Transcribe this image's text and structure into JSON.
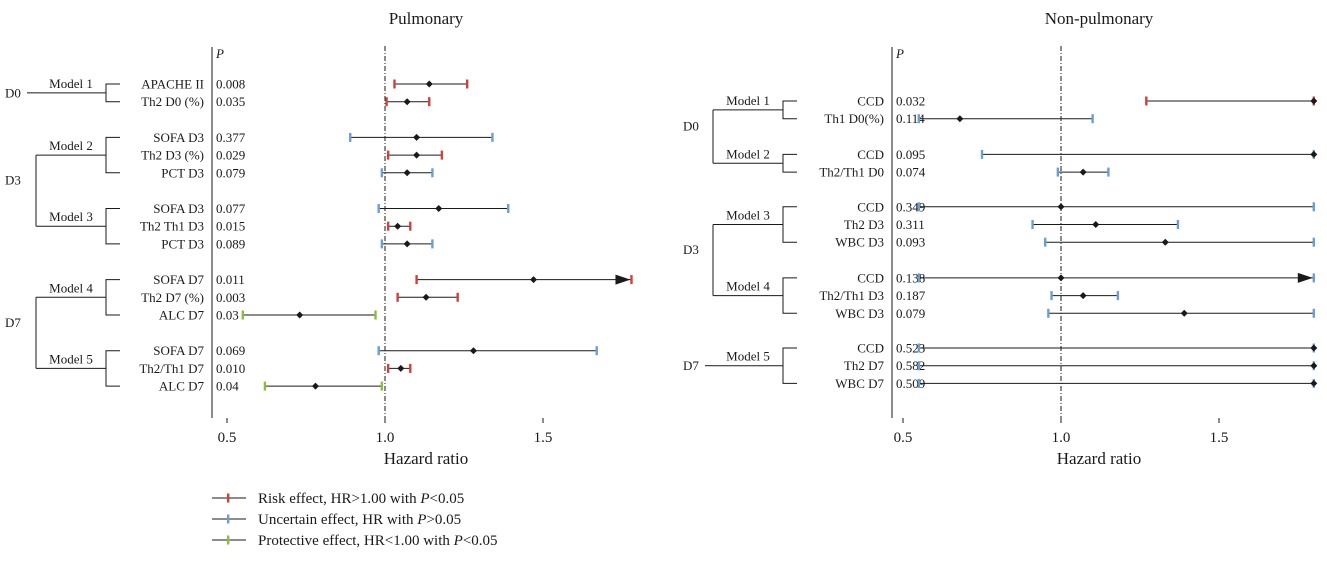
{
  "colors": {
    "risk": "#d0413a",
    "uncertain": "#6b9fd4",
    "protective": "#86c13a",
    "line": "#1a1a1a"
  },
  "legend": [
    {
      "effect": "risk",
      "prefix": "Risk effect, HR>1.00 with ",
      "italic": "P",
      "suffix": "<0.05"
    },
    {
      "effect": "uncertain",
      "prefix": "Uncertain effect, HR with ",
      "italic": "P",
      "suffix": ">0.05"
    },
    {
      "effect": "protective",
      "prefix": "Protective effect, HR<1.00 with ",
      "italic": "P",
      "suffix": "<0.05"
    }
  ],
  "chart_data": [
    {
      "type": "forest",
      "title": "Pulmonary",
      "xlabel": "Hazard ratio",
      "p_header": "P",
      "xlim": [
        0.5,
        1.8
      ],
      "xticks": [
        0.5,
        1.0,
        1.5
      ],
      "xtick_labels": [
        "0.5",
        "1.0",
        "1.5"
      ],
      "reference": 1.0,
      "groups": [
        {
          "day": "D0",
          "models": [
            {
              "model": "Model 1",
              "rows": [
                {
                  "label": "APACHE II",
                  "p": "0.008",
                  "hr": 1.14,
                  "lo": 1.03,
                  "hi": 1.26,
                  "effect": "risk"
                },
                {
                  "label": "Th2 D0 (%)",
                  "p": "0.035",
                  "hr": 1.07,
                  "lo": 1.005,
                  "hi": 1.14,
                  "effect": "risk"
                }
              ]
            }
          ]
        },
        {
          "day": "D3",
          "models": [
            {
              "model": "Model 2",
              "rows": [
                {
                  "label": "SOFA D3",
                  "p": "0.377",
                  "hr": 1.1,
                  "lo": 0.89,
                  "hi": 1.34,
                  "effect": "uncertain"
                },
                {
                  "label": "Th2 D3 (%)",
                  "p": "0.029",
                  "hr": 1.1,
                  "lo": 1.01,
                  "hi": 1.18,
                  "effect": "risk"
                },
                {
                  "label": "PCT D3",
                  "p": "0.079",
                  "hr": 1.07,
                  "lo": 0.99,
                  "hi": 1.15,
                  "effect": "uncertain"
                }
              ]
            },
            {
              "model": "Model 3",
              "rows": [
                {
                  "label": "SOFA D3",
                  "p": "0.077",
                  "hr": 1.17,
                  "lo": 0.98,
                  "hi": 1.39,
                  "effect": "uncertain"
                },
                {
                  "label": "Th2 Th1 D3",
                  "p": "0.015",
                  "hr": 1.04,
                  "lo": 1.01,
                  "hi": 1.08,
                  "effect": "risk"
                },
                {
                  "label": "PCT D3",
                  "p": "0.089",
                  "hr": 1.07,
                  "lo": 0.99,
                  "hi": 1.15,
                  "effect": "uncertain"
                }
              ]
            }
          ]
        },
        {
          "day": "D7",
          "models": [
            {
              "model": "Model 4",
              "rows": [
                {
                  "label": "SOFA D7",
                  "p": "0.011",
                  "hr": 1.47,
                  "lo": 1.1,
                  "hi": 1.78,
                  "effect": "risk",
                  "arrow": true
                },
                {
                  "label": "Th2 D7 (%)",
                  "p": "0.003",
                  "hr": 1.13,
                  "lo": 1.04,
                  "hi": 1.23,
                  "effect": "risk"
                },
                {
                  "label": "ALC D7",
                  "p": "0.03",
                  "hr": 0.73,
                  "lo": 0.55,
                  "hi": 0.97,
                  "effect": "protective"
                }
              ]
            },
            {
              "model": "Model 5",
              "rows": [
                {
                  "label": "SOFA D7",
                  "p": "0.069",
                  "hr": 1.28,
                  "lo": 0.98,
                  "hi": 1.67,
                  "effect": "uncertain"
                },
                {
                  "label": "Th2/Th1 D7",
                  "p": "0.010",
                  "hr": 1.05,
                  "lo": 1.01,
                  "hi": 1.08,
                  "effect": "risk"
                },
                {
                  "label": "ALC D7",
                  "p": "0.04",
                  "hr": 0.78,
                  "lo": 0.62,
                  "hi": 0.99,
                  "effect": "protective"
                }
              ]
            }
          ]
        }
      ]
    },
    {
      "type": "forest",
      "title": "Non-pulmonary",
      "xlabel": "Hazard ratio",
      "p_header": "P",
      "xlim": [
        0.5,
        1.8
      ],
      "xticks": [
        0.5,
        1.0,
        1.5
      ],
      "xtick_labels": [
        "0.5",
        "1.0",
        "1.5"
      ],
      "reference": 1.0,
      "groups": [
        {
          "day": "D0",
          "models": [
            {
              "model": "Model 1",
              "rows": [
                {
                  "label": "CCD",
                  "p": "0.032",
                  "hr": 1.8,
                  "lo": 1.27,
                  "hi": 1.8,
                  "effect": "risk"
                },
                {
                  "label": "Th1 D0(%)",
                  "p": "0.114",
                  "hr": 0.68,
                  "lo": 0.55,
                  "hi": 1.1,
                  "effect": "uncertain"
                }
              ]
            },
            {
              "model": "Model 2",
              "rows": [
                {
                  "label": "CCD",
                  "p": "0.095",
                  "hr": 1.8,
                  "lo": 0.75,
                  "hi": 1.8,
                  "effect": "uncertain"
                },
                {
                  "label": "Th2/Th1 D0",
                  "p": "0.074",
                  "hr": 1.07,
                  "lo": 0.99,
                  "hi": 1.15,
                  "effect": "uncertain"
                }
              ]
            }
          ]
        },
        {
          "day": "D3",
          "models": [
            {
              "model": "Model 3",
              "rows": [
                {
                  "label": "CCD",
                  "p": "0.349",
                  "hr": 1.0,
                  "lo": 0.55,
                  "hi": 1.8,
                  "effect": "uncertain"
                },
                {
                  "label": "Th2 D3",
                  "p": "0.311",
                  "hr": 1.11,
                  "lo": 0.91,
                  "hi": 1.37,
                  "effect": "uncertain"
                },
                {
                  "label": "WBC D3",
                  "p": "0.093",
                  "hr": 1.33,
                  "lo": 0.95,
                  "hi": 1.8,
                  "effect": "uncertain"
                }
              ]
            },
            {
              "model": "Model 4",
              "rows": [
                {
                  "label": "CCD",
                  "p": "0.138",
                  "hr": 1.0,
                  "lo": 0.55,
                  "hi": 1.8,
                  "effect": "uncertain",
                  "arrow": true
                },
                {
                  "label": "Th2/Th1 D3",
                  "p": "0.187",
                  "hr": 1.07,
                  "lo": 0.97,
                  "hi": 1.18,
                  "effect": "uncertain"
                },
                {
                  "label": "WBC D3",
                  "p": "0.079",
                  "hr": 1.39,
                  "lo": 0.96,
                  "hi": 1.8,
                  "effect": "uncertain"
                }
              ]
            }
          ]
        },
        {
          "day": "D7",
          "models": [
            {
              "model": "Model 5",
              "rows": [
                {
                  "label": "CCD",
                  "p": "0.523",
                  "hr": 1.8,
                  "lo": 0.55,
                  "hi": 1.8,
                  "effect": "uncertain"
                },
                {
                  "label": "Th2 D7",
                  "p": "0.582",
                  "hr": 1.8,
                  "lo": 0.55,
                  "hi": 1.8,
                  "effect": "uncertain"
                },
                {
                  "label": "WBC D7",
                  "p": "0.509",
                  "hr": 1.8,
                  "lo": 0.55,
                  "hi": 1.8,
                  "effect": "uncertain"
                }
              ]
            }
          ]
        }
      ]
    }
  ]
}
